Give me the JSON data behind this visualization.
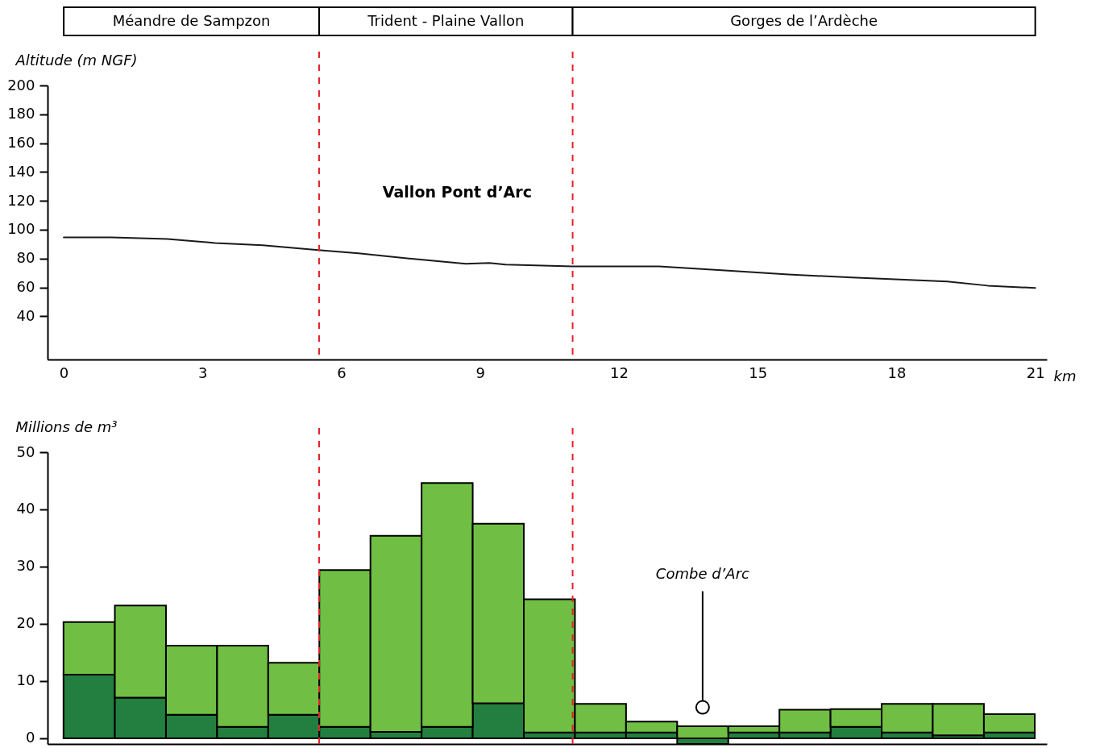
{
  "chart_data": [
    {
      "type": "line",
      "ylabel": "Altitude (m NGF)",
      "xlabel": "km",
      "xlim": [
        -0.35,
        21.25
      ],
      "xticks": [
        0,
        3,
        6,
        9,
        12,
        15,
        18,
        21
      ],
      "ylim": [
        10,
        200
      ],
      "yticks": [
        40,
        60,
        80,
        100,
        120,
        140,
        160,
        180,
        200
      ],
      "grid": false,
      "marker": "none",
      "line_style": "solid",
      "series": [
        {
          "color": "#1a1a1a",
          "x": [
            0,
            1.03,
            2.24,
            3.27,
            4.3,
            5.5,
            6.37,
            7.57,
            8.69,
            9.2,
            9.55,
            11.0,
            12.87,
            14.29,
            15.66,
            17.04,
            19.1,
            19.97,
            21
          ],
          "values": [
            94.7,
            94.7,
            93.6,
            90.8,
            89.2,
            85.8,
            83.6,
            79.7,
            76.3,
            76.9,
            75.8,
            74.6,
            74.6,
            71.8,
            69,
            66.8,
            64,
            61.2,
            59.6
          ]
        }
      ],
      "ref_lines": [
        {
          "axis": "x",
          "value": 5.52,
          "label": null,
          "color": "#e8202a",
          "line_style": "dashed"
        },
        {
          "axis": "x",
          "value": 11.0,
          "label": null,
          "color": "#e8202a",
          "line_style": "dashed"
        }
      ],
      "annotations": [
        "Méandre de Sampzon",
        "Trident - Plaine Vallon",
        "Gorges de l’Ardèche",
        "Vallon Pont d’Arc"
      ]
    },
    {
      "type": "bar",
      "stacked": true,
      "ylabel": "Millions de m³",
      "xlim": [
        -0.35,
        21.25
      ],
      "ylim": [
        -1,
        50
      ],
      "yticks": [
        0,
        10,
        20,
        30,
        40,
        50
      ],
      "grid": false,
      "tick_labels": "y",
      "x": [
        0.55,
        1.66,
        2.76,
        3.87,
        4.97,
        6.08,
        7.18,
        8.29,
        9.39,
        10.5,
        11.6,
        12.71,
        13.81,
        14.92,
        16.02,
        17.13,
        18.23,
        19.34,
        20.44
      ],
      "series": [
        {
          "color": "#237f3f",
          "values": [
            11.1,
            7.1,
            4.1,
            2,
            4.1,
            2,
            1.1,
            2,
            6.1,
            1,
            1,
            1,
            -1,
            1,
            1,
            2,
            1,
            0.5,
            1
          ]
        },
        {
          "color": "#70bf44",
          "values": [
            9.2,
            16.1,
            12.1,
            14.2,
            9.1,
            27.4,
            34.3,
            42.6,
            31.4,
            23.3,
            5,
            1.9,
            2.1,
            1.1,
            4,
            3.1,
            5,
            5.5,
            3.2
          ]
        }
      ],
      "ref_lines": [
        {
          "axis": "x",
          "value": 5.52,
          "label": null,
          "color": "#e8202a",
          "line_style": "dashed"
        },
        {
          "axis": "x",
          "value": 11.0,
          "label": null,
          "color": "#e8202a",
          "line_style": "dashed"
        }
      ],
      "annotations": [
        {
          "text": "Combe d’Arc",
          "x": 13.81,
          "y": 5.4
        }
      ]
    }
  ]
}
